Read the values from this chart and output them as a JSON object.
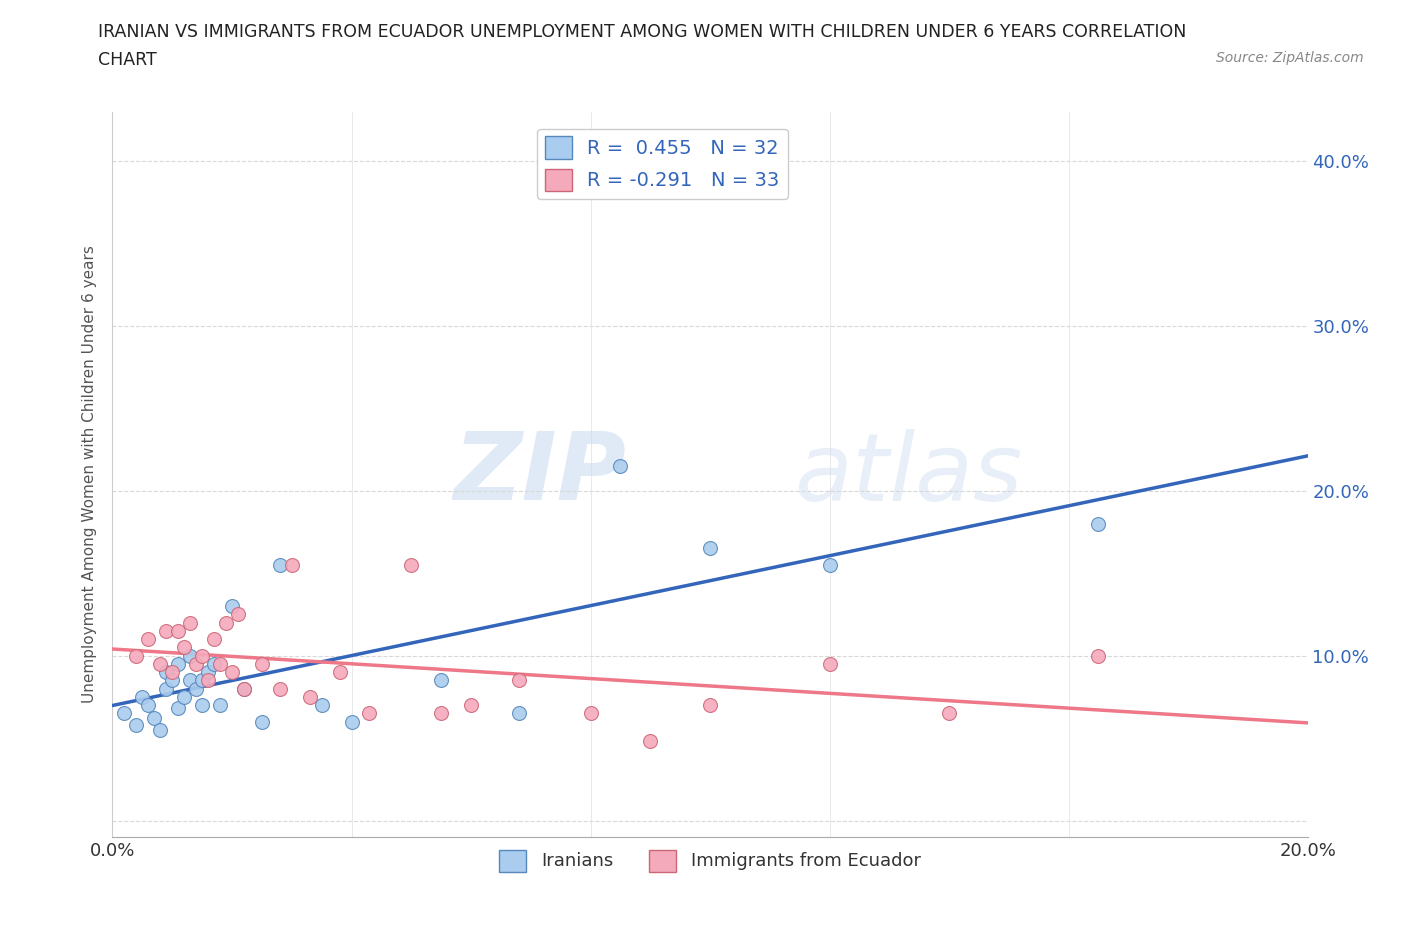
{
  "title_line1": "IRANIAN VS IMMIGRANTS FROM ECUADOR UNEMPLOYMENT AMONG WOMEN WITH CHILDREN UNDER 6 YEARS CORRELATION",
  "title_line2": "CHART",
  "source": "Source: ZipAtlas.com",
  "ylabel": "Unemployment Among Women with Children Under 6 years",
  "xlim": [
    0.0,
    0.2
  ],
  "ylim": [
    -0.01,
    0.43
  ],
  "x_ticks": [
    0.0,
    0.04,
    0.08,
    0.12,
    0.16,
    0.2
  ],
  "x_tick_labels": [
    "0.0%",
    "",
    "",
    "",
    "",
    "20.0%"
  ],
  "y_ticks": [
    0.0,
    0.1,
    0.2,
    0.3,
    0.4
  ],
  "y_tick_labels_right": [
    "",
    "10.0%",
    "20.0%",
    "30.0%",
    "40.0%"
  ],
  "iranians_color": "#aaccee",
  "iranians_edge_color": "#5588bb",
  "ecuador_color": "#f5aabc",
  "ecuador_edge_color": "#cc6677",
  "iranian_line_color": "#3366bb",
  "ecuador_line_color": "#ee7788",
  "legend_R_iranians": "R =  0.455   N = 32",
  "legend_R_ecuador": "R = -0.291   N = 33",
  "watermark_zip": "ZIP",
  "watermark_atlas": "atlas",
  "iranians_x": [
    0.002,
    0.004,
    0.005,
    0.006,
    0.007,
    0.008,
    0.009,
    0.009,
    0.01,
    0.011,
    0.011,
    0.012,
    0.013,
    0.013,
    0.014,
    0.015,
    0.015,
    0.016,
    0.017,
    0.018,
    0.02,
    0.022,
    0.025,
    0.028,
    0.035,
    0.04,
    0.055,
    0.068,
    0.085,
    0.1,
    0.12,
    0.165
  ],
  "iranians_y": [
    0.065,
    0.058,
    0.075,
    0.07,
    0.062,
    0.055,
    0.08,
    0.09,
    0.085,
    0.068,
    0.095,
    0.075,
    0.085,
    0.1,
    0.08,
    0.07,
    0.085,
    0.09,
    0.095,
    0.07,
    0.13,
    0.08,
    0.06,
    0.155,
    0.07,
    0.06,
    0.085,
    0.065,
    0.215,
    0.165,
    0.155,
    0.18
  ],
  "ecuador_x": [
    0.004,
    0.006,
    0.008,
    0.009,
    0.01,
    0.011,
    0.012,
    0.013,
    0.014,
    0.015,
    0.016,
    0.017,
    0.018,
    0.019,
    0.02,
    0.021,
    0.022,
    0.025,
    0.028,
    0.03,
    0.033,
    0.038,
    0.043,
    0.05,
    0.055,
    0.06,
    0.068,
    0.08,
    0.09,
    0.1,
    0.12,
    0.14,
    0.165
  ],
  "ecuador_y": [
    0.1,
    0.11,
    0.095,
    0.115,
    0.09,
    0.115,
    0.105,
    0.12,
    0.095,
    0.1,
    0.085,
    0.11,
    0.095,
    0.12,
    0.09,
    0.125,
    0.08,
    0.095,
    0.08,
    0.155,
    0.075,
    0.09,
    0.065,
    0.155,
    0.065,
    0.07,
    0.085,
    0.065,
    0.048,
    0.07,
    0.095,
    0.065,
    0.1
  ],
  "grid_color": "#d8d8d8",
  "background_color": "#ffffff",
  "marker_size": 100
}
